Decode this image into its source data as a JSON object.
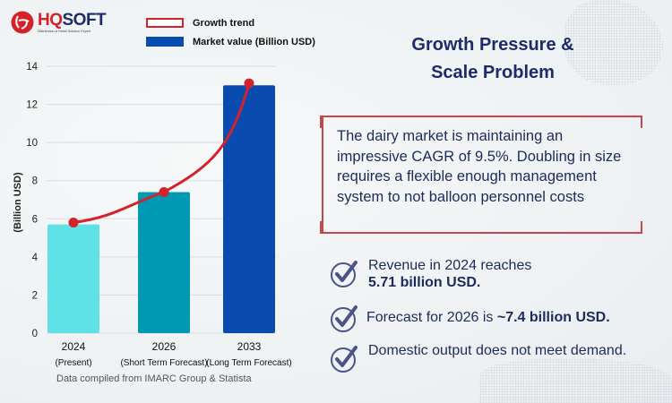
{
  "brand": {
    "name_part1": "HQ",
    "name_part2": "SOFT",
    "tagline": "Distribution & Retail Solution Expert",
    "colors": {
      "red": "#d4212a",
      "navy": "#1d2a6b"
    }
  },
  "legend": {
    "items": [
      {
        "label": "Growth trend",
        "kind": "line",
        "color": "#d4212a"
      },
      {
        "label": "Market value (Billion USD)",
        "kind": "bar",
        "color": "#0a4bb0"
      }
    ]
  },
  "chart_data": {
    "type": "bar",
    "title": "",
    "xlabel": "",
    "ylabel": "(Billion USD)",
    "ylim": [
      0,
      14
    ],
    "yticks": [
      0,
      2,
      4,
      6,
      8,
      10,
      12,
      14
    ],
    "grid": true,
    "legend_position": "top",
    "categories": [
      {
        "year": "2024",
        "sub": "(Present)"
      },
      {
        "year": "2026",
        "sub": "(Short Term Forecast)"
      },
      {
        "year": "2033",
        "sub": "(Long Term Forecast)"
      }
    ],
    "series": [
      {
        "name": "Market value (Billion USD)",
        "type": "bar",
        "values": [
          5.7,
          7.4,
          13.0
        ],
        "colors": [
          "#5ee2e6",
          "#0099b3",
          "#0a4bb0"
        ]
      },
      {
        "name": "Growth trend",
        "type": "line",
        "values": [
          5.8,
          7.4,
          13.1
        ],
        "color": "#d4212a"
      }
    ]
  },
  "source_note": "Data compiled from IMARC Group & Statista",
  "panel": {
    "title_line1": "Growth Pressure &",
    "title_line2": "Scale Problem",
    "callout": "The dairy market is maintaining an impressive CAGR of 9.5%. Doubling in size requires a flexible enough management system to not balloon personnel costs",
    "checks": [
      {
        "text": "Revenue in 2024 reaches",
        "bold": "5.71 billion USD."
      },
      {
        "text": "Forecast for 2026 is",
        "bold": "~7.4 billion USD."
      },
      {
        "text": "Domestic output does not meet demand.",
        "bold": ""
      }
    ]
  }
}
